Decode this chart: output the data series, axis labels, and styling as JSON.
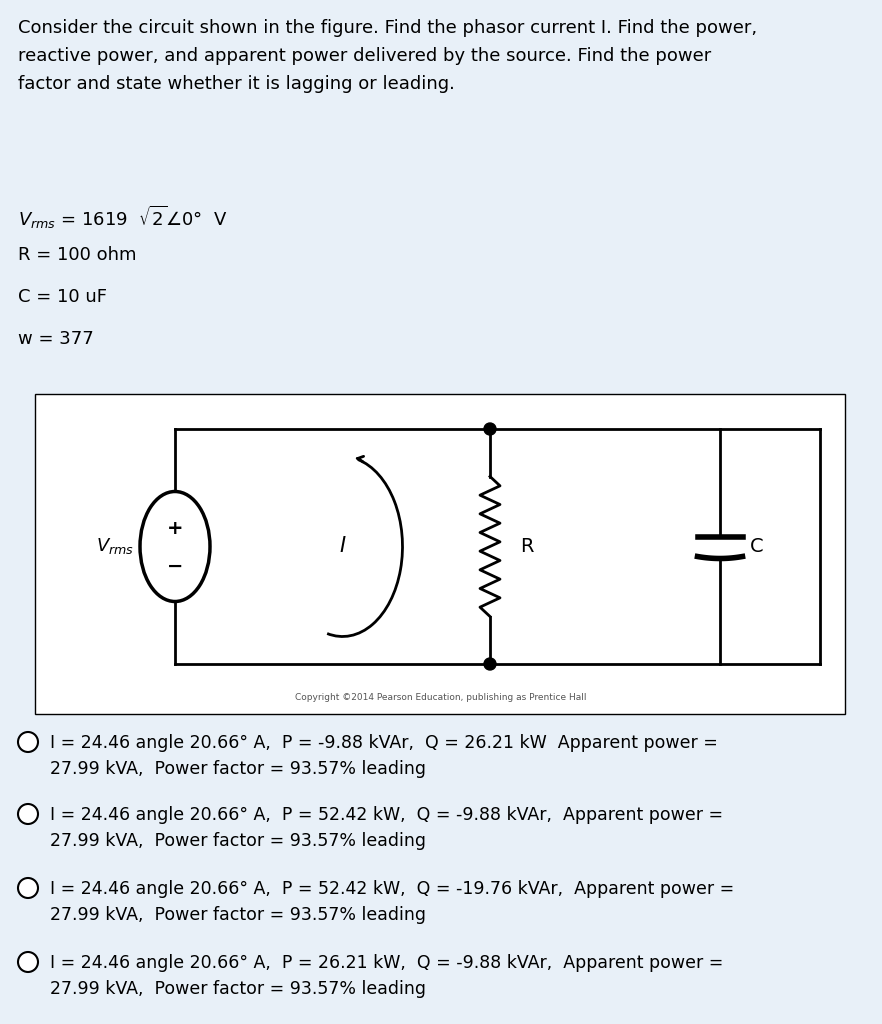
{
  "bg_color": "#e8f0f8",
  "white": "#ffffff",
  "black": "#000000",
  "title_text": "Consider the circuit shown in the figure. Find the phasor current I. Find the power,\nreactive power, and apparent power delivered by the source. Find the power\nfactor and state whether it is lagging or leading.",
  "param1": "V rms = 1619  √2̄0°  V",
  "param2": "R = 100 ohm",
  "param3": "C = 10 uF",
  "param4": "w = 377",
  "copyright": "Copyright ©2014 Pearson Education, publishing as Prentice Hall",
  "options": [
    "I = 24.46 angle 20.66° A,  P = -9.88 kVAr,  Q = 26.21 kW  Apparent power =\n27.99 kVA,  Power factor = 93.57% leading",
    "I = 24.46 angle 20.66° A,  P = 52.42 kW,  Q = -9.88 kVAr,  Apparent power =\n27.99 kVA,  Power factor = 93.57% leading",
    "I = 24.46 angle 20.66° A,  P = 52.42 kW,  Q = -19.76 kVAr,  Apparent power =\n27.99 kVA,  Power factor = 93.57% leading",
    "I = 24.46 angle 20.66° A,  P = 26.21 kW,  Q = -9.88 kVAr,  Apparent power =\n27.99 kVA,  Power factor = 93.57% leading"
  ],
  "font_size_title": 13,
  "font_size_params": 13,
  "font_size_options": 12.5
}
